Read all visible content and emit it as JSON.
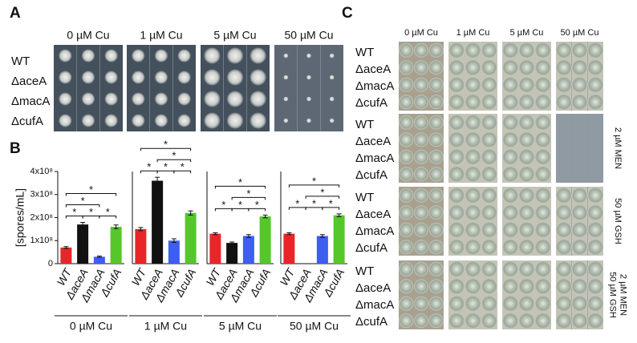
{
  "panel_a": {
    "letter": "A",
    "columns": [
      "0 µM Cu",
      "1 µM Cu",
      "5 µM Cu",
      "50 µM Cu"
    ],
    "rows": [
      "WT",
      "ΔaceA",
      "ΔmacA",
      "ΔcufA"
    ]
  },
  "panel_b": {
    "letter": "B"
  },
  "panel_c": {
    "letter": "C",
    "columns": [
      "0 µM Cu",
      "1 µM Cu",
      "5 µM Cu",
      "50 µM Cu"
    ],
    "row_groups": [
      {
        "rows": [
          "WT",
          "ΔaceA",
          "ΔmacA",
          "ΔcufA"
        ]
      },
      {
        "rows": [
          "WT",
          "ΔaceA",
          "ΔmacA",
          "ΔcufA"
        ],
        "condition": [
          "2 µM MEN"
        ]
      },
      {
        "rows": [
          "WT",
          "ΔaceA",
          "ΔmacA",
          "ΔcufA"
        ],
        "condition": [
          "50 µM GSH"
        ]
      },
      {
        "rows": [
          "WT",
          "ΔaceA",
          "ΔmacA",
          "ΔcufA"
        ],
        "condition": [
          "2 µM MEN",
          "50 µM GSH"
        ]
      }
    ]
  },
  "chart_data": [
    {
      "type": "bar",
      "title": "0 µM Cu",
      "ylabel": "[spores/mL]",
      "categories": [
        "WT",
        "ΔaceA",
        "ΔmacA",
        "ΔcufA"
      ],
      "values": [
        70000000,
        170000000,
        30000000,
        160000000
      ],
      "errors": [
        4000000,
        9000000,
        3000000,
        8000000
      ],
      "colors": [
        "#e8262a",
        "#111111",
        "#3d5ef0",
        "#55c72a"
      ],
      "ylim": [
        0,
        400000000
      ],
      "yticks": [
        0,
        {
          "value": 100000000,
          "label": "1x10⁸"
        },
        {
          "value": 200000000,
          "label": "2x10⁸"
        },
        {
          "value": 300000000,
          "label": "3x10⁸"
        },
        {
          "value": 400000000,
          "label": "4x10⁸"
        }
      ],
      "brackets": [
        {
          "from": "WT",
          "to": "ΔaceA",
          "label": "*"
        },
        {
          "from": "ΔaceA",
          "to": "ΔmacA",
          "label": "*"
        },
        {
          "from": "ΔmacA",
          "to": "ΔcufA",
          "label": "*"
        },
        {
          "from": "WT",
          "to": "ΔmacA",
          "label": "*"
        },
        {
          "from": "WT",
          "to": "ΔcufA",
          "label": "*"
        }
      ]
    },
    {
      "type": "bar",
      "title": "1 µM Cu",
      "categories": [
        "WT",
        "ΔaceA",
        "ΔmacA",
        "ΔcufA"
      ],
      "values": [
        150000000,
        360000000,
        100000000,
        220000000
      ],
      "errors": [
        7000000,
        15000000,
        8000000,
        9000000
      ],
      "colors": [
        "#e8262a",
        "#111111",
        "#3d5ef0",
        "#55c72a"
      ],
      "ylim": [
        0,
        400000000
      ],
      "brackets": [
        {
          "from": "WT",
          "to": "ΔaceA",
          "label": "*"
        },
        {
          "from": "ΔaceA",
          "to": "ΔmacA",
          "label": "*"
        },
        {
          "from": "ΔmacA",
          "to": "ΔcufA",
          "label": "*"
        },
        {
          "from": "ΔaceA",
          "to": "ΔcufA",
          "label": "*"
        },
        {
          "from": "WT",
          "to": "ΔcufA",
          "label": "*"
        }
      ]
    },
    {
      "type": "bar",
      "title": "5 µM Cu",
      "categories": [
        "WT",
        "ΔaceA",
        "ΔmacA",
        "ΔcufA"
      ],
      "values": [
        130000000,
        90000000,
        120000000,
        205000000
      ],
      "errors": [
        4000000,
        4000000,
        6000000,
        6000000
      ],
      "colors": [
        "#e8262a",
        "#111111",
        "#3d5ef0",
        "#55c72a"
      ],
      "ylim": [
        0,
        400000000
      ],
      "brackets": [
        {
          "from": "WT",
          "to": "ΔaceA",
          "label": "*"
        },
        {
          "from": "ΔaceA",
          "to": "ΔmacA",
          "label": "*"
        },
        {
          "from": "ΔmacA",
          "to": "ΔcufA",
          "label": "*"
        },
        {
          "from": "ΔaceA",
          "to": "ΔcufA",
          "label": "*"
        },
        {
          "from": "WT",
          "to": "ΔcufA",
          "label": "*"
        }
      ]
    },
    {
      "type": "bar",
      "title": "50 µM Cu",
      "categories": [
        "WT",
        "ΔaceA",
        "ΔmacA",
        "ΔcufA"
      ],
      "values": [
        130000000,
        0,
        120000000,
        210000000
      ],
      "errors": [
        4000000,
        0,
        6000000,
        6000000
      ],
      "colors": [
        "#e8262a",
        "#111111",
        "#3d5ef0",
        "#55c72a"
      ],
      "ylim": [
        0,
        400000000
      ],
      "brackets": [
        {
          "from": "WT",
          "to": "ΔaceA",
          "label": "*"
        },
        {
          "from": "ΔaceA",
          "to": "ΔmacA",
          "label": "*"
        },
        {
          "from": "ΔmacA",
          "to": "ΔcufA",
          "label": "*"
        },
        {
          "from": "ΔaceA",
          "to": "ΔcufA",
          "label": "*"
        },
        {
          "from": "WT",
          "to": "ΔcufA",
          "label": "*"
        }
      ]
    }
  ]
}
